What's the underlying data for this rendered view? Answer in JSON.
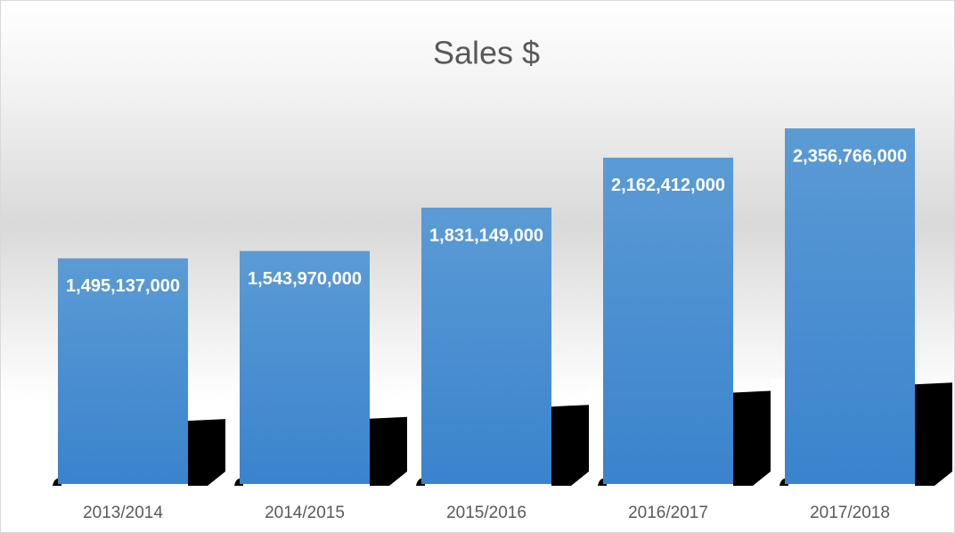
{
  "chart_data": {
    "type": "bar",
    "title": "Sales $",
    "categories": [
      "2013/2014",
      "2014/2015",
      "2015/2016",
      "2016/2017",
      "2017/2018"
    ],
    "values": [
      1495137000,
      1543970000,
      1831149000,
      2162412000,
      2356766000
    ],
    "value_labels": [
      "1,495,137,000",
      "1,543,970,000",
      "1,831,149,000",
      "2,162,412,000",
      "2,356,766,000"
    ],
    "color": "#4a8fd4"
  }
}
